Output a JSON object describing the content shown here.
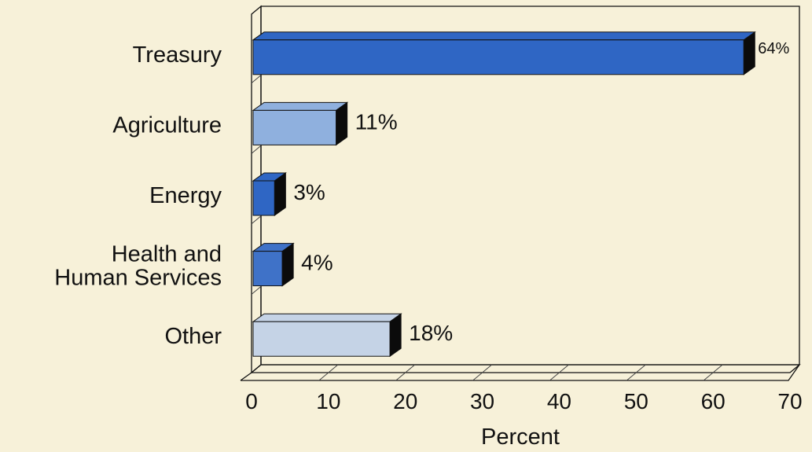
{
  "chart_data": {
    "type": "bar",
    "orientation": "horizontal",
    "style": "3d",
    "categories": [
      "Treasury",
      "Agriculture",
      "Energy",
      "Health and Human Services",
      "Other"
    ],
    "category_lines": [
      [
        "Treasury"
      ],
      [
        "Agriculture"
      ],
      [
        "Energy"
      ],
      [
        "Health and",
        "Human Services"
      ],
      [
        "Other"
      ]
    ],
    "values": [
      64,
      11,
      3,
      4,
      18
    ],
    "value_labels": [
      "64%",
      "11%",
      "3%",
      "4%",
      "18%"
    ],
    "bar_colors": [
      "#2f66c4",
      "#8fb0de",
      "#2f66c4",
      "#3f72c8",
      "#c5d3e6"
    ],
    "xlabel": "Percent",
    "ylabel": "",
    "title": "",
    "xlim": [
      0,
      70
    ],
    "xticks": [
      0,
      10,
      20,
      30,
      40,
      50,
      60,
      70
    ],
    "tick_labels": [
      "0",
      "10",
      "20",
      "30",
      "40",
      "50",
      "60",
      "70"
    ],
    "grid": true,
    "legend": "none"
  }
}
